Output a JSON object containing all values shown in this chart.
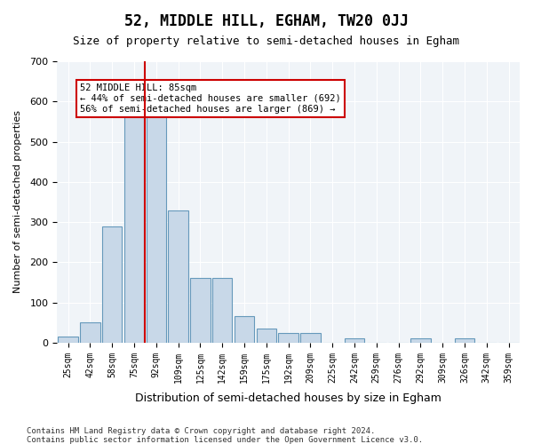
{
  "title": "52, MIDDLE HILL, EGHAM, TW20 0JJ",
  "subtitle": "Size of property relative to semi-detached houses in Egham",
  "xlabel": "Distribution of semi-detached houses by size in Egham",
  "ylabel": "Number of semi-detached properties",
  "footnote1": "Contains HM Land Registry data © Crown copyright and database right 2024.",
  "footnote2": "Contains public sector information licensed under the Open Government Licence v3.0.",
  "annotation_line1": "52 MIDDLE HILL: 85sqm",
  "annotation_line2": "← 44% of semi-detached houses are smaller (692)",
  "annotation_line3": "56% of semi-detached houses are larger (869) →",
  "property_size": 85,
  "bar_color": "#c8d8e8",
  "bar_edge_color": "#6699bb",
  "marker_line_color": "#cc0000",
  "background_color": "#f0f4f8",
  "categories": [
    "25sqm",
    "42sqm",
    "58sqm",
    "75sqm",
    "92sqm",
    "109sqm",
    "125sqm",
    "142sqm",
    "159sqm",
    "175sqm",
    "192sqm",
    "209sqm",
    "225sqm",
    "242sqm",
    "259sqm",
    "276sqm",
    "292sqm",
    "309sqm",
    "326sqm",
    "342sqm",
    "359sqm"
  ],
  "values": [
    15,
    50,
    290,
    575,
    570,
    330,
    160,
    160,
    65,
    35,
    25,
    25,
    0,
    10,
    0,
    0,
    10,
    0,
    10,
    0,
    0
  ],
  "ylim": [
    0,
    700
  ],
  "yticks": [
    0,
    100,
    200,
    300,
    400,
    500,
    600,
    700
  ],
  "property_bin_index": 3,
  "figsize": [
    6.0,
    5.0
  ],
  "dpi": 100
}
